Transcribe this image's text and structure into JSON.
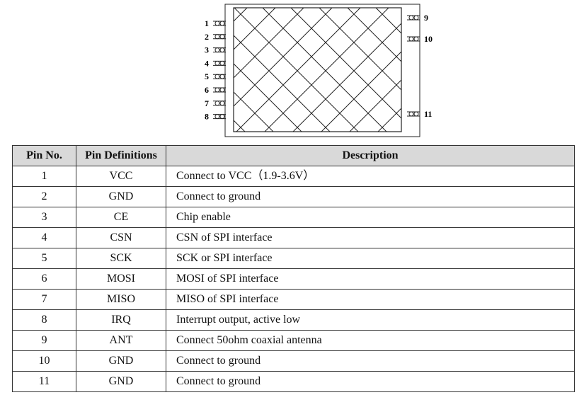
{
  "diagram": {
    "left_pins": [
      "1",
      "2",
      "3",
      "4",
      "5",
      "6",
      "7",
      "8"
    ],
    "right_pins": [
      "9",
      "10",
      "11"
    ]
  },
  "table": {
    "headers": [
      "Pin No.",
      "Pin Definitions",
      "Description"
    ],
    "rows": [
      {
        "no": "1",
        "def": "VCC",
        "desc": "Connect to VCC（1.9-3.6V）"
      },
      {
        "no": "2",
        "def": "GND",
        "desc": "Connect to ground"
      },
      {
        "no": "3",
        "def": "CE",
        "desc": "Chip enable"
      },
      {
        "no": "4",
        "def": "CSN",
        "desc": "CSN of SPI interface"
      },
      {
        "no": "5",
        "def": "SCK",
        "desc": "SCK or SPI interface"
      },
      {
        "no": "6",
        "def": "MOSI",
        "desc": "MOSI of SPI interface"
      },
      {
        "no": "7",
        "def": "MISO",
        "desc": "MISO of SPI interface"
      },
      {
        "no": "8",
        "def": "IRQ",
        "desc": "Interrupt output, active low"
      },
      {
        "no": "9",
        "def": "ANT",
        "desc": "Connect 50ohm coaxial antenna"
      },
      {
        "no": "10",
        "def": "GND",
        "desc": "Connect to ground"
      },
      {
        "no": "11",
        "def": "GND",
        "desc": "Connect to ground"
      }
    ]
  }
}
